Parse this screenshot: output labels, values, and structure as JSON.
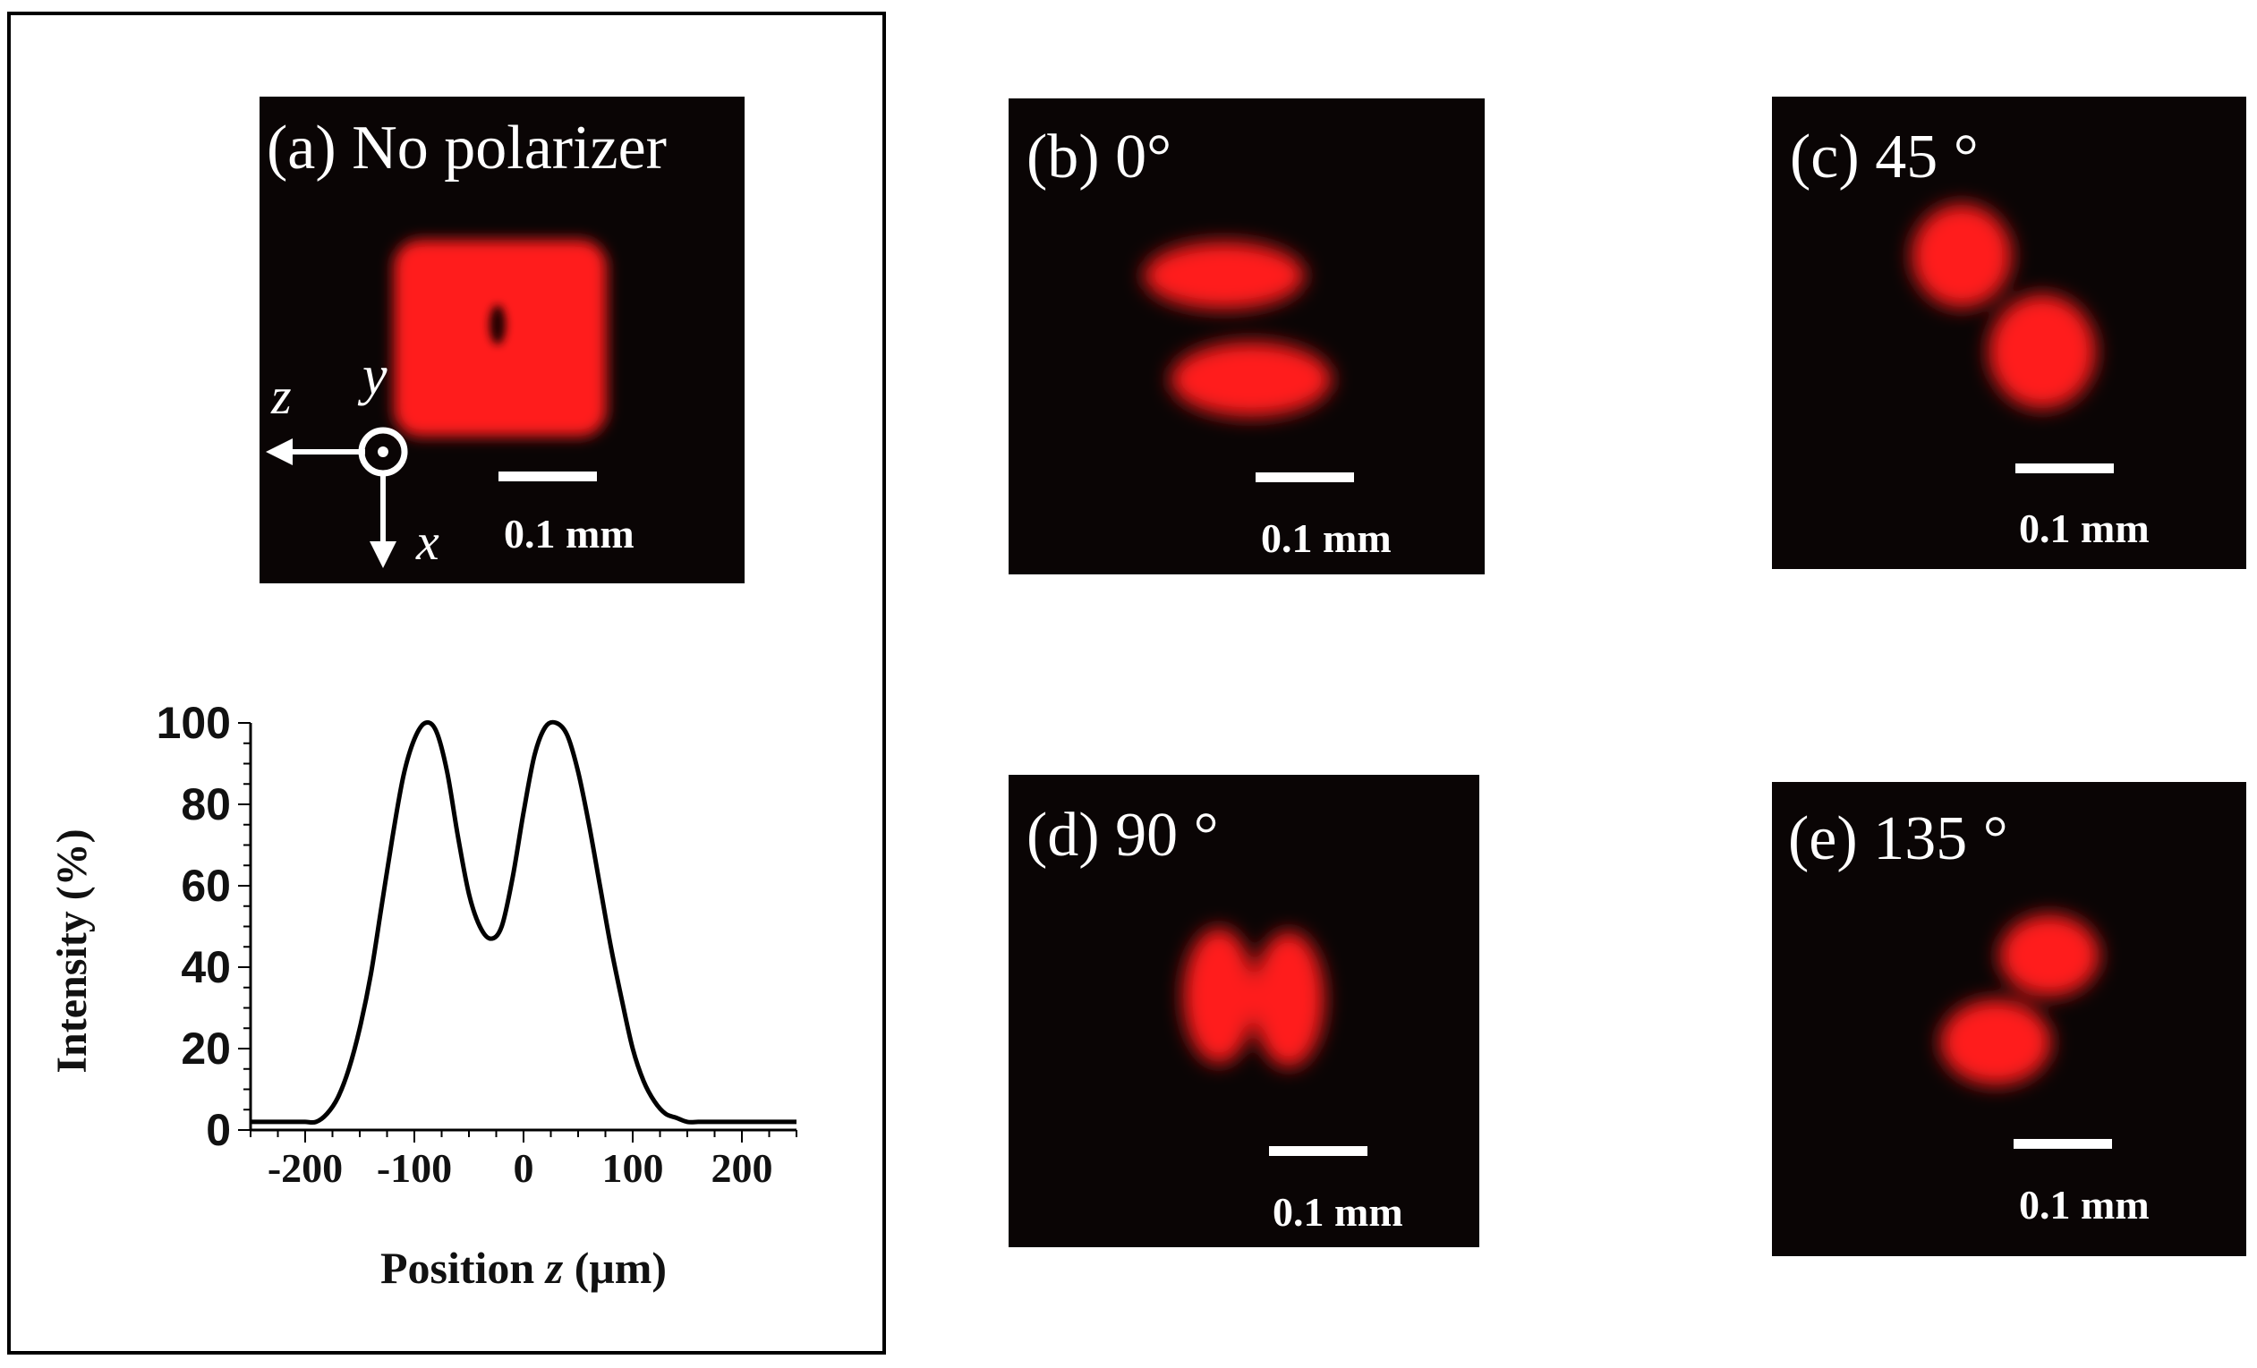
{
  "panels": [
    {
      "id": "a",
      "label": "(a) No polarizer",
      "scale_bar": "0.1 mm",
      "pattern": "square-ring"
    },
    {
      "id": "b",
      "label": "(b) 0°",
      "scale_bar": "0.1 mm",
      "pattern": "two-lobes-horizontal"
    },
    {
      "id": "c",
      "label": "(c) 45 °",
      "scale_bar": "0.1 mm",
      "pattern": "two-lobes-diagonal"
    },
    {
      "id": "d",
      "label": "(d) 90 °",
      "scale_bar": "0.1 mm",
      "pattern": "two-lobes-vertical"
    },
    {
      "id": "e",
      "label": "(e) 135 °",
      "scale_bar": "0.1 mm",
      "pattern": "two-lobes-antidiagonal"
    }
  ],
  "axes_indicator": {
    "z": "z",
    "y": "y",
    "x": "x"
  },
  "colors": {
    "beam": "#ff1a1a",
    "background": "#0a0505",
    "line": "#000000"
  },
  "chart_data": {
    "type": "line",
    "xlabel_prefix": "Position ",
    "xlabel_var": "z",
    "xlabel_suffix": " (μm)",
    "ylabel": "Intensity (%)",
    "xlim": [
      -250,
      250
    ],
    "ylim": [
      0,
      100
    ],
    "xticks": [
      -200,
      -100,
      0,
      100,
      200
    ],
    "yticks": [
      0,
      20,
      40,
      60,
      80,
      100
    ],
    "series": [
      {
        "x": [
          -250,
          -230,
          -210,
          -200,
          -190,
          -180,
          -170,
          -160,
          -150,
          -140,
          -130,
          -120,
          -110,
          -100,
          -90,
          -80,
          -70,
          -60,
          -50,
          -40,
          -30,
          -20,
          -10,
          0,
          10,
          20,
          30,
          40,
          50,
          60,
          70,
          80,
          90,
          100,
          110,
          120,
          130,
          140,
          150,
          160,
          170,
          180,
          190,
          200,
          210,
          230,
          250
        ],
        "y": [
          2,
          2,
          2,
          2,
          2,
          4,
          8,
          15,
          25,
          38,
          55,
          72,
          87,
          96,
          100,
          98,
          88,
          72,
          58,
          50,
          47,
          50,
          62,
          78,
          92,
          99,
          100,
          97,
          88,
          75,
          60,
          45,
          32,
          20,
          12,
          7,
          4,
          3,
          2,
          2,
          2,
          2,
          2,
          2,
          2,
          2,
          2
        ]
      }
    ]
  }
}
